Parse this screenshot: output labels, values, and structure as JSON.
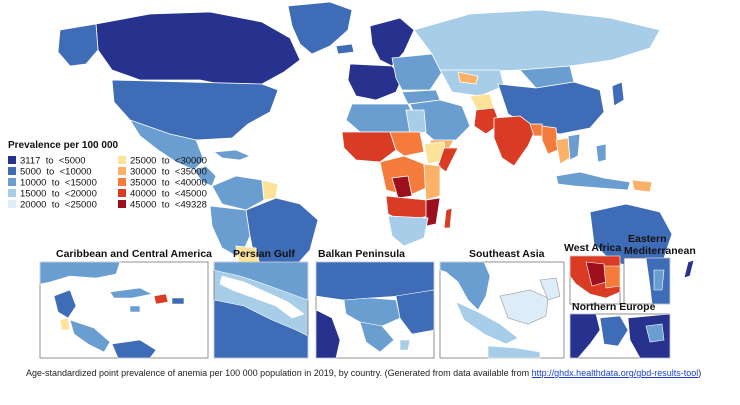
{
  "legend": {
    "title": "Prevalence per 100 000",
    "classes": [
      {
        "label": "3117  to  <5000",
        "color": "#27328f"
      },
      {
        "label": "5000  to  <10000",
        "color": "#3f6cb6"
      },
      {
        "label": "10000  to  <15000",
        "color": "#6a9ed0"
      },
      {
        "label": "15000  to  <20000",
        "color": "#a7cde8"
      },
      {
        "label": "20000  to  <25000",
        "color": "#dcedf7"
      },
      {
        "label": "25000  to  <30000",
        "color": "#fde39a"
      },
      {
        "label": "30000  to  <35000",
        "color": "#fbb167"
      },
      {
        "label": "35000  to  <40000",
        "color": "#f57b3d"
      },
      {
        "label": "40000  to  <45000",
        "color": "#d93b25"
      },
      {
        "label": "45000  to  <49328",
        "color": "#9e0f1e"
      }
    ]
  },
  "insets": [
    {
      "title": "Caribbean and Central America"
    },
    {
      "title": "Persian Gulf"
    },
    {
      "title": "Balkan Peninsula"
    },
    {
      "title": "Southeast Asia"
    },
    {
      "title": "West Africa"
    },
    {
      "title": "Eastern Mediterranean"
    },
    {
      "title": "Northern Europe"
    }
  ],
  "caption": {
    "text": "Age-standardized point prevalence of anemia per 100 000 population in 2019, by country. (Generated from data available from ",
    "link": "http://ghdx.healthdata.org/gbd-results-tool",
    "suffix": ")"
  }
}
